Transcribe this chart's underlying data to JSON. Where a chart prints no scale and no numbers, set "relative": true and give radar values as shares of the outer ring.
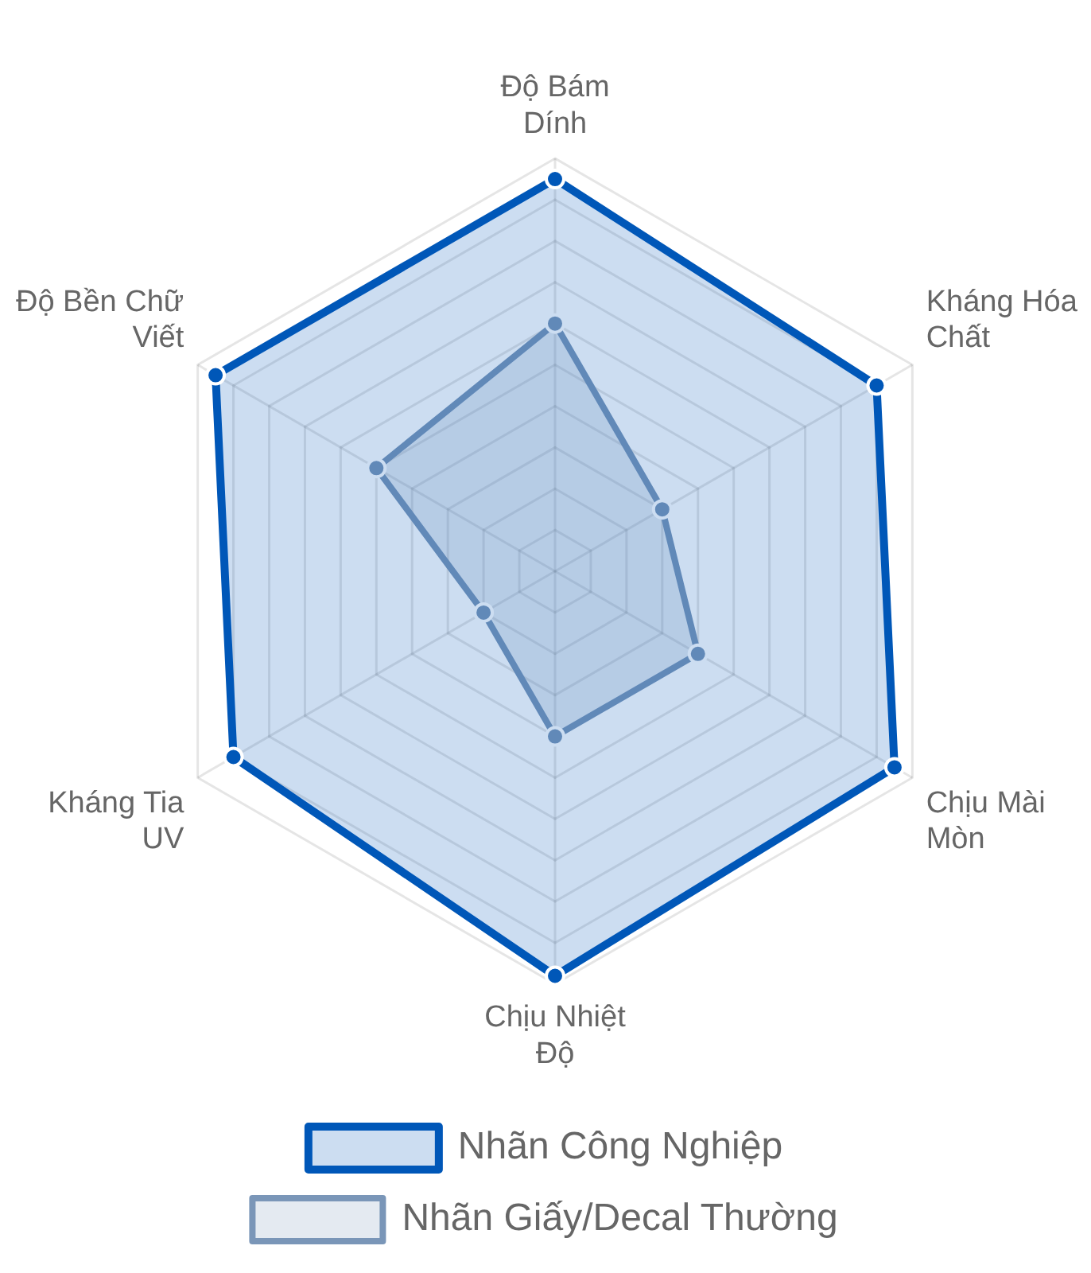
{
  "chart_data": {
    "type": "radar",
    "relative": true,
    "categories": [
      "Độ Bám Dính",
      "Kháng Hóa Chất",
      "Chịu Mài Mòn",
      "Chịu Nhiệt Độ",
      "Kháng Tia UV",
      "Độ Bền Chữ Viết"
    ],
    "series": [
      {
        "name": "Nhãn Công Nghiệp",
        "color": "#0057b8",
        "values": [
          0.95,
          0.9,
          0.95,
          0.98,
          0.9,
          0.95
        ]
      },
      {
        "name": "Nhãn Giấy/Decal Thường",
        "color": "#7a96b8",
        "values": [
          0.6,
          0.3,
          0.4,
          0.4,
          0.2,
          0.5
        ]
      }
    ],
    "grid": true,
    "legend": "bottom",
    "marker": "circle"
  }
}
